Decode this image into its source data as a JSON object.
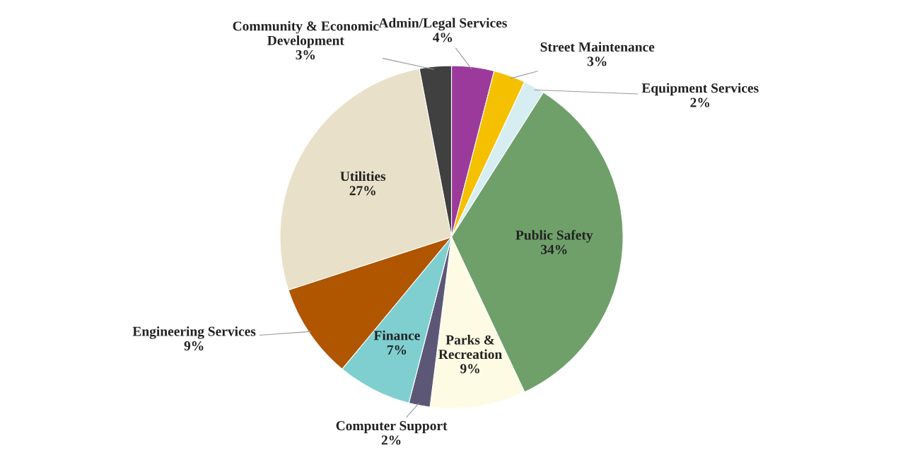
{
  "chart_data": {
    "type": "pie",
    "categories": [
      "Admin/Legal Services",
      "Street Maintenance",
      "Equipment Services",
      "Public Safety",
      "Parks &\nRecreation",
      "Computer Support",
      "Finance",
      "Engineering Services",
      "Utilities",
      "Community & Economic\nDevelopment"
    ],
    "values": [
      4,
      3,
      2,
      34,
      9,
      2,
      7,
      9,
      27,
      3
    ],
    "colors": [
      "#9b3a9b",
      "#f5c000",
      "#d6eef2",
      "#6fa06a",
      "#fdfbe3",
      "#5d5777",
      "#7fcfd0",
      "#b05500",
      "#e8e0c8",
      "#404040"
    ],
    "value_labels": [
      "4%",
      "3%",
      "2%",
      "34%",
      "9%",
      "2%",
      "7%",
      "9%",
      "27%",
      "3%"
    ],
    "legend": false
  }
}
